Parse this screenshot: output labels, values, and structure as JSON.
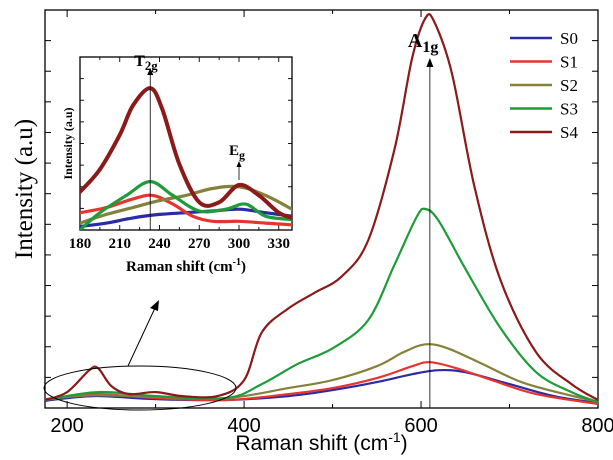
{
  "chart_data": [
    {
      "type": "line",
      "xlabel": "Raman shift (cm",
      "xlabel_sup": "-1",
      "xlabel_close": ")",
      "ylabel": "Intensity  (a.u)",
      "xlim": [
        175,
        800
      ],
      "ylim": [
        0,
        1.0
      ],
      "x_ticks": [
        200,
        400,
        600,
        800
      ],
      "y_tick_count": 12,
      "grid": false,
      "legend": {
        "placement": "top-right"
      },
      "series": [
        {
          "name": "S0",
          "color": "#2b2ba8",
          "points": [
            [
              175,
              0.018
            ],
            [
              230,
              0.03
            ],
            [
              300,
              0.022
            ],
            [
              380,
              0.02
            ],
            [
              450,
              0.03
            ],
            [
              500,
              0.045
            ],
            [
              550,
              0.065
            ],
            [
              590,
              0.085
            ],
            [
              620,
              0.095
            ],
            [
              650,
              0.09
            ],
            [
              700,
              0.06
            ],
            [
              750,
              0.03
            ],
            [
              800,
              0.012
            ]
          ]
        },
        {
          "name": "S1",
          "color": "#e8342e",
          "points": [
            [
              175,
              0.02
            ],
            [
              230,
              0.035
            ],
            [
              300,
              0.025
            ],
            [
              380,
              0.02
            ],
            [
              450,
              0.035
            ],
            [
              500,
              0.05
            ],
            [
              550,
              0.075
            ],
            [
              590,
              0.105
            ],
            [
              610,
              0.115
            ],
            [
              640,
              0.1
            ],
            [
              680,
              0.07
            ],
            [
              730,
              0.035
            ],
            [
              800,
              0.01
            ]
          ]
        },
        {
          "name": "S2",
          "color": "#86813a",
          "points": [
            [
              175,
              0.022
            ],
            [
              230,
              0.032
            ],
            [
              300,
              0.028
            ],
            [
              380,
              0.025
            ],
            [
              450,
              0.05
            ],
            [
              500,
              0.07
            ],
            [
              550,
              0.105
            ],
            [
              580,
              0.14
            ],
            [
              605,
              0.16
            ],
            [
              630,
              0.15
            ],
            [
              670,
              0.11
            ],
            [
              720,
              0.06
            ],
            [
              800,
              0.015
            ]
          ]
        },
        {
          "name": "S3",
          "color": "#1e9c3a",
          "points": [
            [
              175,
              0.02
            ],
            [
              235,
              0.04
            ],
            [
              300,
              0.03
            ],
            [
              380,
              0.025
            ],
            [
              420,
              0.06
            ],
            [
              460,
              0.11
            ],
            [
              500,
              0.15
            ],
            [
              540,
              0.22
            ],
            [
              570,
              0.36
            ],
            [
              595,
              0.48
            ],
            [
              605,
              0.5
            ],
            [
              620,
              0.47
            ],
            [
              650,
              0.35
            ],
            [
              690,
              0.2
            ],
            [
              730,
              0.09
            ],
            [
              770,
              0.04
            ],
            [
              800,
              0.015
            ]
          ]
        },
        {
          "name": "S4",
          "color": "#8b1a1a",
          "points": [
            [
              175,
              0.02
            ],
            [
              200,
              0.04
            ],
            [
              225,
              0.095
            ],
            [
              235,
              0.1
            ],
            [
              250,
              0.055
            ],
            [
              270,
              0.035
            ],
            [
              300,
              0.04
            ],
            [
              330,
              0.03
            ],
            [
              370,
              0.03
            ],
            [
              400,
              0.07
            ],
            [
              420,
              0.19
            ],
            [
              450,
              0.25
            ],
            [
              480,
              0.29
            ],
            [
              510,
              0.33
            ],
            [
              540,
              0.42
            ],
            [
              570,
              0.65
            ],
            [
              590,
              0.88
            ],
            [
              605,
              0.98
            ],
            [
              615,
              0.97
            ],
            [
              635,
              0.84
            ],
            [
              660,
              0.56
            ],
            [
              690,
              0.32
            ],
            [
              730,
              0.14
            ],
            [
              770,
              0.06
            ],
            [
              800,
              0.02
            ]
          ]
        }
      ],
      "annotations": [
        {
          "text": "A",
          "sub": "1g",
          "x": 610
        }
      ]
    },
    {
      "type": "line",
      "xlabel": "Raman shift (cm",
      "xlabel_sup": "-1",
      "xlabel_close": ")",
      "ylabel": "Intensity (a.u)",
      "xlim": [
        180,
        340
      ],
      "ylim": [
        0,
        1.0
      ],
      "x_ticks": [
        180,
        210,
        240,
        270,
        300,
        330
      ],
      "y_tick_count": 7,
      "series": [
        {
          "name": "S0",
          "color": "#2b2ba8",
          "points": [
            [
              180,
              0.02
            ],
            [
              200,
              0.04
            ],
            [
              220,
              0.07
            ],
            [
              240,
              0.09
            ],
            [
              260,
              0.1
            ],
            [
              280,
              0.11
            ],
            [
              300,
              0.12
            ],
            [
              320,
              0.1
            ],
            [
              340,
              0.08
            ]
          ]
        },
        {
          "name": "S1",
          "color": "#e8342e",
          "points": [
            [
              180,
              0.1
            ],
            [
              200,
              0.13
            ],
            [
              220,
              0.18
            ],
            [
              235,
              0.2
            ],
            [
              250,
              0.15
            ],
            [
              265,
              0.08
            ],
            [
              280,
              0.05
            ],
            [
              300,
              0.05
            ],
            [
              320,
              0.04
            ],
            [
              340,
              0.03
            ]
          ]
        },
        {
          "name": "S2",
          "color": "#86813a",
          "points": [
            [
              180,
              0.04
            ],
            [
              200,
              0.09
            ],
            [
              220,
              0.13
            ],
            [
              240,
              0.17
            ],
            [
              260,
              0.2
            ],
            [
              280,
              0.24
            ],
            [
              300,
              0.25
            ],
            [
              320,
              0.2
            ],
            [
              340,
              0.12
            ]
          ]
        },
        {
          "name": "S3",
          "color": "#1e9c3a",
          "points": [
            [
              180,
              0.0
            ],
            [
              195,
              0.1
            ],
            [
              215,
              0.2
            ],
            [
              233,
              0.28
            ],
            [
              250,
              0.2
            ],
            [
              270,
              0.11
            ],
            [
              290,
              0.12
            ],
            [
              305,
              0.15
            ],
            [
              320,
              0.08
            ],
            [
              340,
              0.06
            ]
          ]
        },
        {
          "name": "S4",
          "color": "#8b1a1a",
          "points": [
            [
              180,
              0.22
            ],
            [
              195,
              0.35
            ],
            [
              210,
              0.55
            ],
            [
              220,
              0.72
            ],
            [
              233,
              0.82
            ],
            [
              242,
              0.7
            ],
            [
              255,
              0.38
            ],
            [
              270,
              0.16
            ],
            [
              285,
              0.16
            ],
            [
              300,
              0.26
            ],
            [
              315,
              0.2
            ],
            [
              330,
              0.1
            ],
            [
              340,
              0.07
            ]
          ]
        }
      ],
      "annotations": [
        {
          "text": "T",
          "sub": "2g",
          "x": 233
        },
        {
          "text": "E",
          "sub": "g",
          "x": 300
        }
      ]
    }
  ]
}
